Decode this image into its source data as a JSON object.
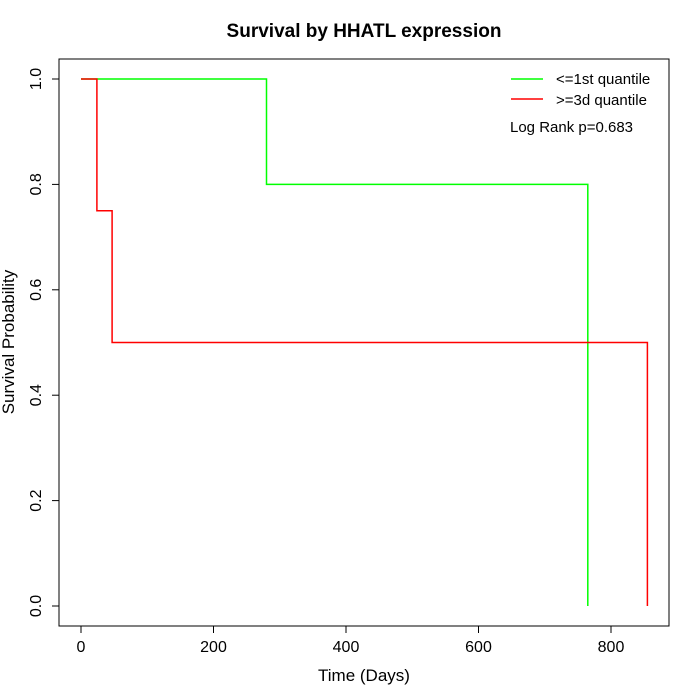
{
  "chart_data": {
    "type": "line",
    "title": "Survival by HHATL expression",
    "xlabel": "Time (Days)",
    "ylabel": "Survival Probability",
    "xlim": [
      0,
      855
    ],
    "ylim": [
      0,
      1
    ],
    "x_ticks": [
      0,
      200,
      400,
      600,
      800
    ],
    "x_tick_labels": [
      "0",
      "200",
      "400",
      "600",
      "800"
    ],
    "y_ticks": [
      0.0,
      0.2,
      0.4,
      0.6,
      0.8,
      1.0
    ],
    "y_tick_labels": [
      "0.0",
      "0.2",
      "0.4",
      "0.6",
      "0.8",
      "1.0"
    ],
    "grid": false,
    "legend_position": "top-right",
    "series": [
      {
        "name": "<=1st quantile",
        "color": "#00ff00",
        "step": true,
        "x": [
          0,
          280,
          765,
          765
        ],
        "y": [
          1.0,
          0.8,
          0.0,
          0.0
        ]
      },
      {
        "name": ">=3d quantile",
        "color": "#ff0000",
        "step": true,
        "x": [
          0,
          24,
          47,
          855,
          855
        ],
        "y": [
          1.0,
          0.75,
          0.5,
          0.0,
          0.0
        ]
      }
    ],
    "annotations": [
      "Log Rank p=0.683"
    ]
  }
}
